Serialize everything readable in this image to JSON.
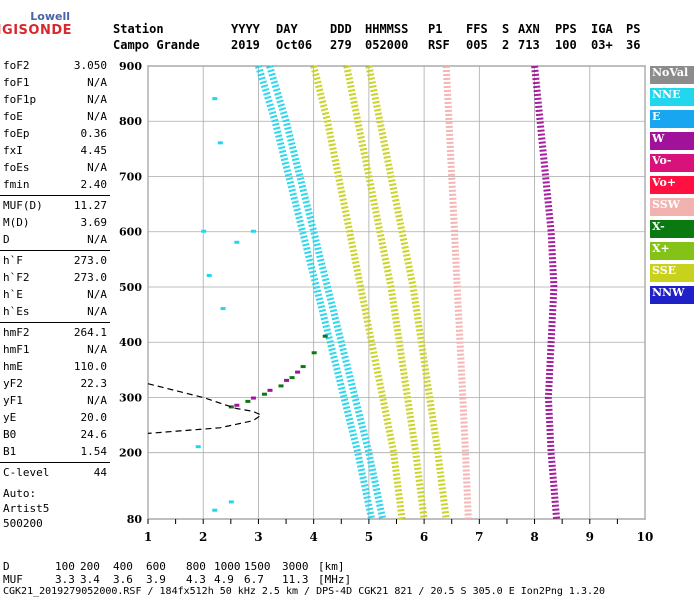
{
  "logo": {
    "line1": "Lowell",
    "line2": "DIGISONDE"
  },
  "header": {
    "labels": [
      "Station",
      "YYYY",
      "DAY",
      "DDD",
      "HHMMSS",
      "P1",
      "FFS",
      "S",
      "AXN",
      "PPS",
      "IGA",
      "PS"
    ],
    "values": [
      "Campo Grande",
      "2019",
      "Oct06",
      "279",
      "052000",
      "RSF",
      "005",
      "2",
      "713",
      "100",
      "03+",
      "36"
    ]
  },
  "params": [
    {
      "name": "foF2",
      "value": "3.050"
    },
    {
      "name": "foF1",
      "value": "N/A"
    },
    {
      "name": "foF1p",
      "value": "N/A"
    },
    {
      "name": "foE",
      "value": "N/A"
    },
    {
      "name": "foEp",
      "value": "0.36"
    },
    {
      "name": "fxI",
      "value": "4.45"
    },
    {
      "name": "foEs",
      "value": "N/A"
    },
    {
      "name": "fmin",
      "value": "2.40"
    },
    {
      "name": "MUF(D)",
      "value": "11.27"
    },
    {
      "name": "M(D)",
      "value": "3.69"
    },
    {
      "name": "D",
      "value": "N/A"
    },
    {
      "name": "h`F",
      "value": "273.0"
    },
    {
      "name": "h`F2",
      "value": "273.0"
    },
    {
      "name": "h`E",
      "value": "N/A"
    },
    {
      "name": "h`Es",
      "value": "N/A"
    },
    {
      "name": "hmF2",
      "value": "264.1"
    },
    {
      "name": "hmF1",
      "value": "N/A"
    },
    {
      "name": "hmE",
      "value": "110.0"
    },
    {
      "name": "yF2",
      "value": "22.3"
    },
    {
      "name": "yF1",
      "value": "N/A"
    },
    {
      "name": "yE",
      "value": "20.0"
    },
    {
      "name": "B0",
      "value": "24.6"
    },
    {
      "name": "B1",
      "value": "1.54"
    },
    {
      "name": "C-level",
      "value": "44"
    }
  ],
  "auto": {
    "line1": "Auto:",
    "line2": "Artist5",
    "line3": "500200"
  },
  "legend": [
    {
      "label": "NoVal",
      "bg": "#8c8c8c",
      "fg": "#ffffff"
    },
    {
      "label": "NNE",
      "bg": "#22d6ee",
      "fg": "#ffffff"
    },
    {
      "label": "E",
      "bg": "#19a6f0",
      "fg": "#ffffff"
    },
    {
      "label": "W",
      "bg": "#a0129a",
      "fg": "#ffffff"
    },
    {
      "label": "Vo-",
      "bg": "#d8127a",
      "fg": "#ffffff"
    },
    {
      "label": "Vo+",
      "bg": "#ff1040",
      "fg": "#ffffff"
    },
    {
      "label": "SSW",
      "bg": "#f2b2b0",
      "fg": "#ffffff"
    },
    {
      "label": "X-",
      "bg": "#0a7a10",
      "fg": "#ffffff"
    },
    {
      "label": "X+",
      "bg": "#84c218",
      "fg": "#ffffff"
    },
    {
      "label": "SSE",
      "bg": "#c8d21c",
      "fg": "#ffffff"
    },
    {
      "label": "NNW",
      "bg": "#2020c8",
      "fg": "#ffffff"
    }
  ],
  "chart_data": {
    "type": "scatter",
    "xlim": [
      1,
      10
    ],
    "ylim": [
      80,
      900
    ],
    "x_ticks": [
      1,
      2,
      3,
      4,
      5,
      6,
      7,
      8,
      9,
      10
    ],
    "y_ticks": [
      80,
      200,
      300,
      400,
      500,
      600,
      700,
      800,
      900
    ],
    "grid": true,
    "traces": [
      {
        "name": "NNE",
        "color": "#22d6ee",
        "points": [
          [
            3.0,
            900
          ],
          [
            3.3,
            800
          ],
          [
            3.55,
            700
          ],
          [
            3.8,
            600
          ],
          [
            4.05,
            500
          ],
          [
            4.3,
            400
          ],
          [
            4.55,
            300
          ],
          [
            4.8,
            200
          ],
          [
            5.05,
            80
          ]
        ]
      },
      {
        "name": "NNE",
        "color": "#22d6ee",
        "points": [
          [
            3.2,
            900
          ],
          [
            3.5,
            800
          ],
          [
            3.75,
            700
          ],
          [
            4.0,
            600
          ],
          [
            4.25,
            500
          ],
          [
            4.5,
            400
          ],
          [
            4.75,
            300
          ],
          [
            5.0,
            200
          ],
          [
            5.25,
            80
          ]
        ]
      },
      {
        "name": "SSE",
        "color": "#c8d21c",
        "points": [
          [
            4.0,
            900
          ],
          [
            4.25,
            800
          ],
          [
            4.45,
            700
          ],
          [
            4.65,
            600
          ],
          [
            4.85,
            500
          ],
          [
            5.05,
            400
          ],
          [
            5.25,
            300
          ],
          [
            5.45,
            200
          ],
          [
            5.6,
            80
          ]
        ]
      },
      {
        "name": "SSE",
        "color": "#c8d21c",
        "points": [
          [
            4.6,
            900
          ],
          [
            4.8,
            800
          ],
          [
            5.0,
            700
          ],
          [
            5.2,
            600
          ],
          [
            5.4,
            500
          ],
          [
            5.55,
            400
          ],
          [
            5.7,
            300
          ],
          [
            5.85,
            200
          ],
          [
            6.0,
            80
          ]
        ]
      },
      {
        "name": "SSE",
        "color": "#c8d21c",
        "points": [
          [
            5.0,
            900
          ],
          [
            5.2,
            800
          ],
          [
            5.4,
            700
          ],
          [
            5.6,
            600
          ],
          [
            5.8,
            500
          ],
          [
            5.95,
            400
          ],
          [
            6.1,
            300
          ],
          [
            6.25,
            200
          ],
          [
            6.4,
            80
          ]
        ]
      },
      {
        "name": "SSW",
        "color": "#f2b2b0",
        "points": [
          [
            6.4,
            900
          ],
          [
            6.45,
            800
          ],
          [
            6.5,
            700
          ],
          [
            6.55,
            600
          ],
          [
            6.6,
            500
          ],
          [
            6.65,
            400
          ],
          [
            6.7,
            300
          ],
          [
            6.75,
            200
          ],
          [
            6.8,
            80
          ]
        ]
      },
      {
        "name": "W",
        "color": "#a0129a",
        "points": [
          [
            8.0,
            900
          ],
          [
            8.1,
            800
          ],
          [
            8.2,
            700
          ],
          [
            8.3,
            600
          ],
          [
            8.35,
            500
          ],
          [
            8.3,
            400
          ],
          [
            8.25,
            300
          ],
          [
            8.3,
            200
          ],
          [
            8.4,
            80
          ]
        ]
      }
    ],
    "trace_profile": {
      "name": "profile",
      "points": [
        [
          1,
          325
        ],
        [
          2.0,
          300
        ],
        [
          2.6,
          280
        ],
        [
          2.9,
          275
        ],
        [
          3.05,
          268
        ],
        [
          2.9,
          258
        ],
        [
          2.3,
          245
        ],
        [
          1,
          235
        ]
      ]
    },
    "echo_clusters": [
      {
        "name": "X-",
        "color": "#0a7a10",
        "points": [
          [
            2.5,
            282
          ],
          [
            2.8,
            292
          ],
          [
            3.1,
            305
          ],
          [
            3.4,
            320
          ],
          [
            3.6,
            335
          ],
          [
            3.8,
            355
          ],
          [
            4.0,
            380
          ],
          [
            4.2,
            410
          ]
        ]
      },
      {
        "name": "W",
        "color": "#a0129a",
        "points": [
          [
            2.6,
            285
          ],
          [
            2.9,
            298
          ],
          [
            3.2,
            312
          ],
          [
            3.5,
            330
          ],
          [
            3.7,
            345
          ]
        ]
      },
      {
        "name": "NNE",
        "color": "#22d6ee",
        "points": [
          [
            2.2,
            840
          ],
          [
            2.3,
            760
          ],
          [
            2.0,
            600
          ],
          [
            2.1,
            520
          ],
          [
            2.35,
            460
          ],
          [
            2.6,
            580
          ],
          [
            2.9,
            600
          ],
          [
            1.9,
            210
          ],
          [
            2.5,
            110
          ],
          [
            2.2,
            95
          ]
        ]
      }
    ]
  },
  "bottom": {
    "d_label": "D",
    "d_values": [
      "100",
      "200",
      "400",
      "600",
      "800",
      "1000",
      "1500",
      "3000",
      "[km]"
    ],
    "muf_label": "MUF",
    "muf_values": [
      "3.3",
      "3.4",
      "3.6",
      "3.9",
      "4.3",
      "4.9",
      "6.7",
      "11.3",
      "[MHz]"
    ],
    "footer": "CGK21_2019279052000.RSF / 184fx512h 50 kHz 2.5 km / DPS-4D CGK21 821 / 20.5 S 305.0 E Ion2Png 1.3.20"
  }
}
